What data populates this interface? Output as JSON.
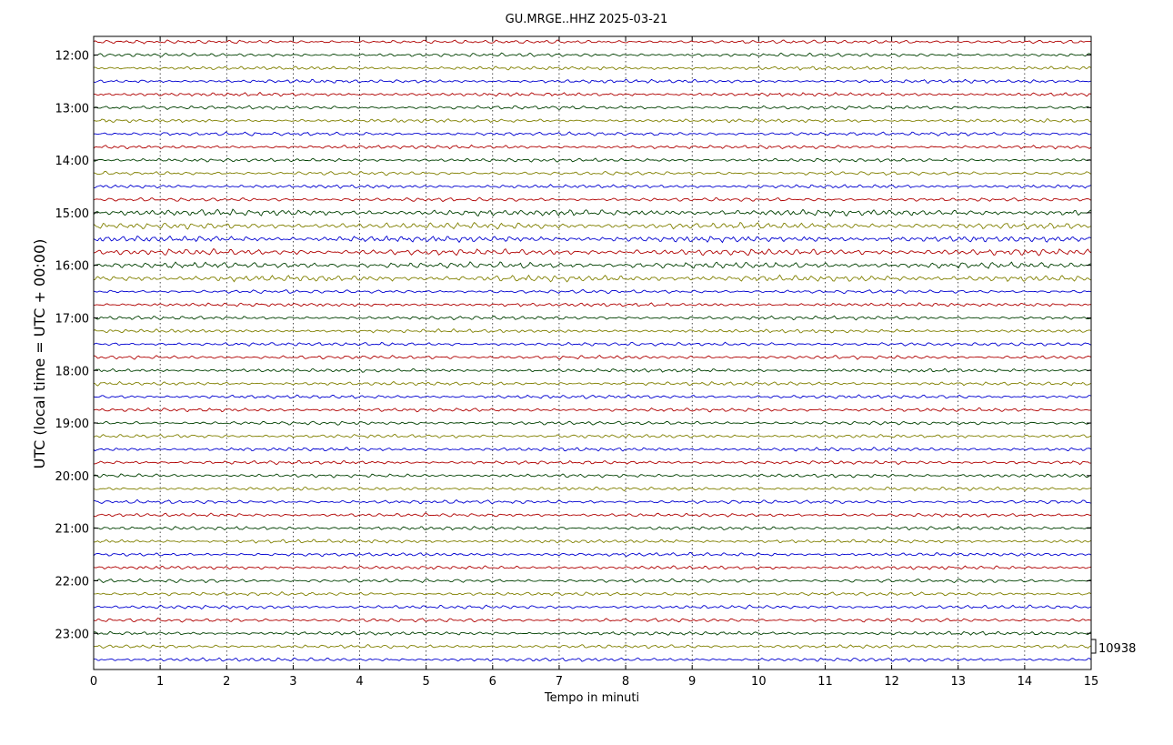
{
  "chart_data": {
    "type": "line",
    "title": "GU.MRGE..HHZ 2025-03-21",
    "xlabel": "Tempo in minuti",
    "ylabel": "UTC (local time = UTC + 00:00)",
    "xlim": [
      0,
      15
    ],
    "x_ticks": [
      "0",
      "1",
      "2",
      "3",
      "4",
      "5",
      "6",
      "7",
      "8",
      "9",
      "10",
      "11",
      "12",
      "13",
      "14",
      "15"
    ],
    "y_tick_labels": [
      "12:00",
      "13:00",
      "14:00",
      "15:00",
      "16:00",
      "17:00",
      "18:00",
      "19:00",
      "20:00",
      "21:00",
      "22:00",
      "23:00"
    ],
    "trace_start": "11:45",
    "trace_interval_minutes": 15,
    "trace_count": 48,
    "trace_colors": [
      "#b00000",
      "#004000",
      "#808000",
      "#0000d0"
    ],
    "scale_label": "10938",
    "grid": true
  }
}
